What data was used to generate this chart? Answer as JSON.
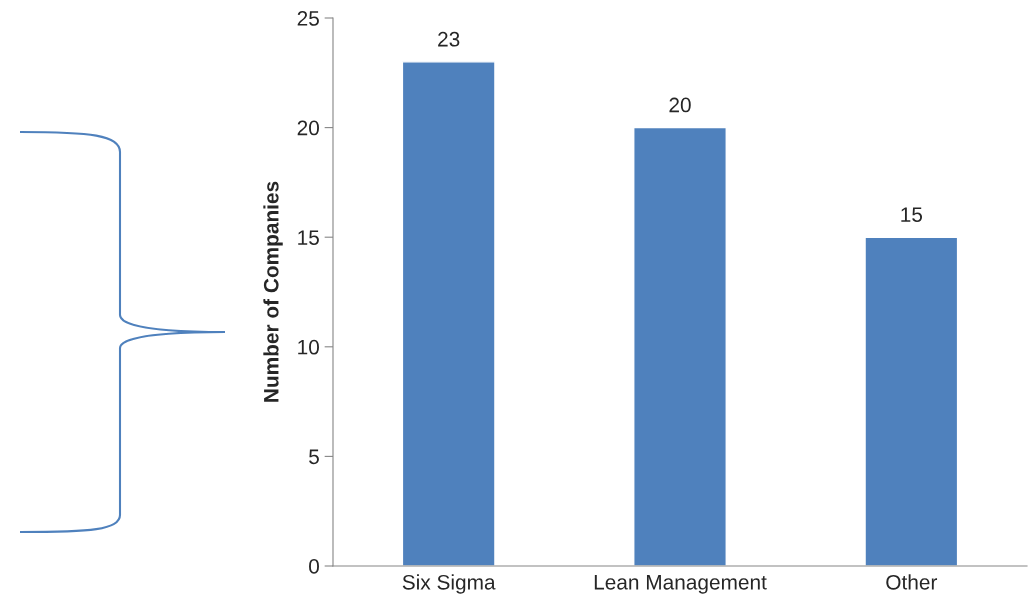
{
  "chart_data": {
    "type": "bar",
    "ylabel": "Number of Companies",
    "categories": [
      "Six Sigma",
      "Lean Management",
      "Other"
    ],
    "values": [
      23,
      20,
      15
    ],
    "color": "#4f81bd",
    "ylim": [
      0,
      25
    ],
    "yticks": [
      0,
      5,
      10,
      15,
      20,
      25
    ],
    "grid": false,
    "data_labels": true
  }
}
